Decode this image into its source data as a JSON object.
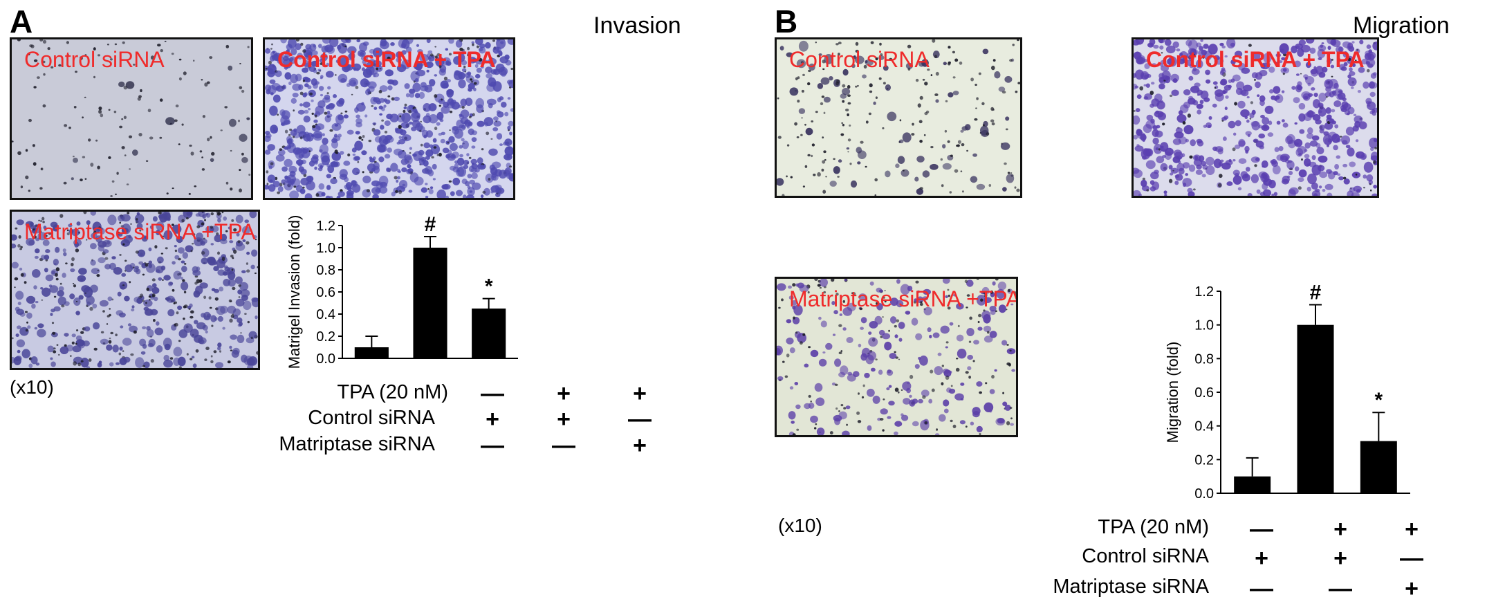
{
  "panel_a": {
    "letter": "A",
    "title": "Invasion",
    "images": [
      {
        "label": "Control siRNA",
        "bold": false,
        "bg": "#c9cbd8",
        "cell": "#2c2c48",
        "density": 150,
        "purple": 0.05
      },
      {
        "label": "Control siRNA + TPA",
        "bold": true,
        "bg": "#d4d6ee",
        "cell": "#4f4ab0",
        "density": 900,
        "purple": 0.8
      },
      {
        "label": "Matriptase siRNA +TPA",
        "bold": false,
        "bg": "#c8cae2",
        "cell": "#4a4699",
        "density": 650,
        "purple": 0.6
      }
    ],
    "magnification": "(x10)",
    "rows": [
      {
        "label": "TPA (20 nM)",
        "values": [
          "—",
          "+",
          "+"
        ]
      },
      {
        "label": "Control siRNA",
        "values": [
          "+",
          "+",
          "—"
        ]
      },
      {
        "label": "Matriptase siRNA",
        "values": [
          "—",
          "—",
          "+"
        ]
      }
    ]
  },
  "panel_b": {
    "letter": "B",
    "title": "Migration",
    "images": [
      {
        "label": "Control siRNA",
        "bold": false,
        "bg": "#e8ecdf",
        "cell": "#3a3460",
        "density": 260,
        "purple": 0.25
      },
      {
        "label": "Control siRNA + TPA",
        "bold": true,
        "bg": "#dcdcec",
        "cell": "#5a3fb0",
        "density": 700,
        "purple": 0.9
      },
      {
        "label": "Matriptase siRNA +TPA",
        "bold": false,
        "bg": "#e2e6d6",
        "cell": "#5c40a8",
        "density": 360,
        "purple": 0.55
      }
    ],
    "magnification": "(x10)",
    "rows": [
      {
        "label": "TPA (20 nM)",
        "values": [
          "—",
          "+",
          "+"
        ]
      },
      {
        "label": "Control siRNA",
        "values": [
          "+",
          "+",
          "—"
        ]
      },
      {
        "label": "Matriptase siRNA",
        "values": [
          "—",
          "—",
          "+"
        ]
      }
    ]
  },
  "chart_data": [
    {
      "type": "bar",
      "ylabel": "Matrigel Invasion  (fold)",
      "ylim": [
        0,
        1.2
      ],
      "yticks": [
        "0.0",
        "0.2",
        "0.4",
        "0.6",
        "0.8",
        "1.0",
        "1.2"
      ],
      "values": [
        0.1,
        1.0,
        0.45
      ],
      "errors": [
        0.1,
        0.1,
        0.09
      ],
      "annotations": [
        "",
        "#",
        "*"
      ],
      "color": "#000000"
    },
    {
      "type": "bar",
      "ylabel": "Migration  (fold)",
      "ylim": [
        0,
        1.2
      ],
      "yticks": [
        "0.0",
        "0.2",
        "0.4",
        "0.6",
        "0.8",
        "1.0",
        "1.2"
      ],
      "values": [
        0.1,
        1.0,
        0.31
      ],
      "errors": [
        0.11,
        0.12,
        0.17
      ],
      "annotations": [
        "",
        "#",
        "*"
      ],
      "color": "#000000"
    }
  ]
}
